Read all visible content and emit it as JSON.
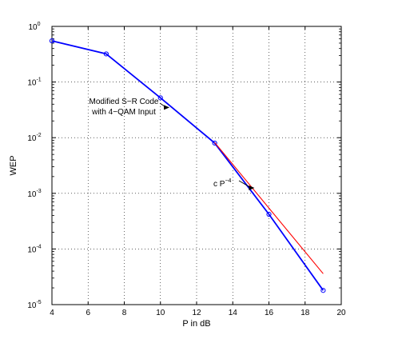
{
  "chart_data": {
    "type": "line",
    "title": "",
    "xlabel": "P in dB",
    "ylabel": "WEP",
    "xlim": [
      4,
      20
    ],
    "ylim": [
      1e-05,
      1
    ],
    "yscale": "log",
    "grid": true,
    "legend": "none",
    "x_ticks": [
      "4",
      "6",
      "8",
      "10",
      "12",
      "14",
      "16",
      "18",
      "20"
    ],
    "y_ticks": [
      {
        "base": "10",
        "exp": "0"
      },
      {
        "base": "10",
        "exp": "-1"
      },
      {
        "base": "10",
        "exp": "-2"
      },
      {
        "base": "10",
        "exp": "-3"
      },
      {
        "base": "10",
        "exp": "-4"
      },
      {
        "base": "10",
        "exp": "-5"
      }
    ],
    "series": [
      {
        "color": "#0000ff",
        "marker": "circle",
        "x": [
          4,
          7,
          10,
          13,
          16,
          19
        ],
        "y": [
          0.55,
          0.32,
          0.052,
          0.008,
          0.00042,
          1.8e-05
        ]
      },
      {
        "color": "#ff0000",
        "marker": "none",
        "x": [
          13,
          19
        ],
        "y": [
          0.0082,
          3.6e-05
        ]
      }
    ],
    "annotations": [
      {
        "lines": [
          "Modified S−R Code",
          "with 4−QAM Input"
        ],
        "arrow_to": {
          "x": 10.5,
          "y": 0.035
        }
      },
      {
        "text": "c P",
        "superscript": "−4",
        "arrow_to": {
          "x": 15.2,
          "y": 0.00125
        }
      }
    ]
  }
}
